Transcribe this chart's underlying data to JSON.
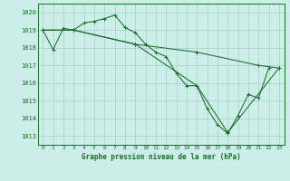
{
  "background_color": "#cceee8",
  "grid_color": "#aad4cc",
  "line_color": "#1a6b2a",
  "marker": "+",
  "xlabel": "Graphe pression niveau de la mer (hPa)",
  "ylim": [
    1012.5,
    1020.5
  ],
  "yticks": [
    1013,
    1014,
    1015,
    1016,
    1017,
    1018,
    1019,
    1020
  ],
  "xlim": [
    -0.5,
    23.5
  ],
  "xticks": [
    0,
    1,
    2,
    3,
    4,
    5,
    6,
    7,
    8,
    9,
    10,
    11,
    12,
    13,
    14,
    15,
    16,
    17,
    18,
    19,
    20,
    21,
    22,
    23
  ],
  "series1_x": [
    0,
    1,
    2,
    3,
    4,
    5,
    6,
    7,
    8,
    9,
    10,
    11,
    12,
    13,
    14,
    15,
    16,
    17,
    18,
    19,
    20,
    21,
    22
  ],
  "series1_y": [
    1019.0,
    1017.9,
    1019.1,
    1019.0,
    1019.4,
    1019.5,
    1019.65,
    1019.85,
    1019.15,
    1018.85,
    1018.2,
    1017.75,
    1017.5,
    1016.55,
    1015.85,
    1015.85,
    1014.55,
    1013.65,
    1013.15,
    1014.15,
    1015.35,
    1015.15,
    1016.85
  ],
  "series2_x": [
    0,
    3,
    9,
    15,
    21,
    23
  ],
  "series2_y": [
    1019.0,
    1019.0,
    1018.2,
    1017.75,
    1017.0,
    1016.85
  ],
  "series3_x": [
    0,
    3,
    9,
    15,
    18,
    23
  ],
  "series3_y": [
    1019.0,
    1019.0,
    1018.2,
    1015.85,
    1013.2,
    1016.85
  ]
}
